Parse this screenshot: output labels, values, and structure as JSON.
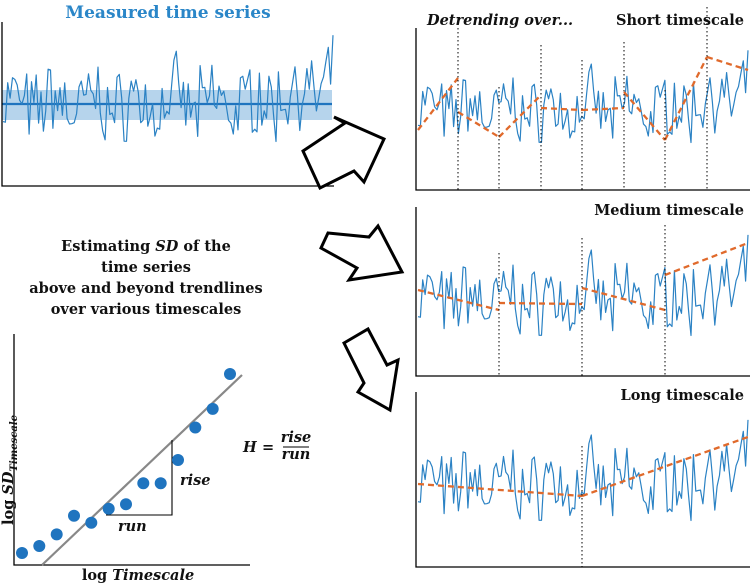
{
  "measured_title": "Measured time series",
  "detrending_prefix": "Detrending over...",
  "panels": {
    "short": "Short timescale",
    "medium": "Medium timescale",
    "long": "Long timescale"
  },
  "estimating_text": {
    "line1_pre": "Estimating ",
    "line1_sd": "SD",
    "line1_post": " of the",
    "line2": "time series",
    "line3": "above and beyond trendlines",
    "line4": "over various timescales"
  },
  "axes": {
    "ylabel_pre": "log ",
    "ylabel_main": "SD",
    "ylabel_sub": "Timescale",
    "xlabel_pre": "log ",
    "xlabel_main": "Timescale"
  },
  "labels": {
    "rise": "rise",
    "run": "run"
  },
  "formula": {
    "lhs": "H",
    "eq": "=",
    "num": "rise",
    "den": "run"
  },
  "colors": {
    "series": "#2b82c4",
    "trend": "#e06a2c",
    "band": "#a9cde9",
    "dots": "#1f74bf",
    "fit": "#888888",
    "title": "#2a86c8"
  },
  "chart_data": {
    "type": "scatter",
    "x": [
      1,
      2,
      3,
      4,
      5,
      6,
      7,
      8,
      9,
      10,
      11,
      12,
      13
    ],
    "y": [
      1,
      1.3,
      1.8,
      2.6,
      2.3,
      2.9,
      3.1,
      4.0,
      4.0,
      5.0,
      6.4,
      7.2,
      8.7
    ],
    "fit_line": true
  }
}
